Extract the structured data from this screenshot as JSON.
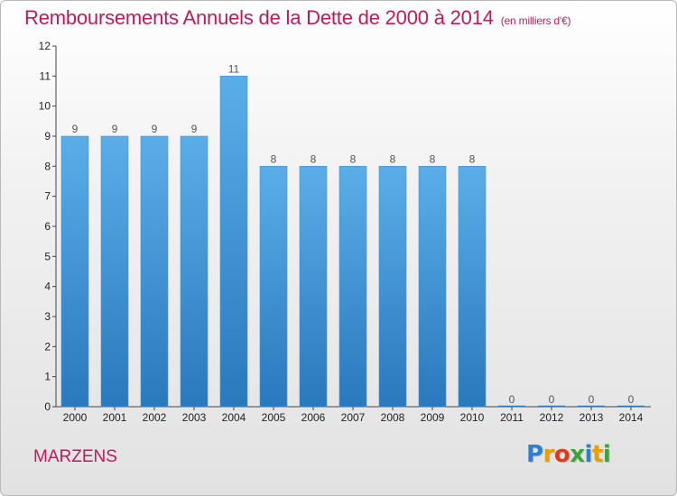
{
  "header": {
    "title": "Remboursements Annuels de la Dette de 2000 à 2014",
    "unit": "(en milliers d'€)"
  },
  "footer": {
    "town": "MARZENS",
    "logo_letters": [
      "P",
      "r",
      "o",
      "x",
      "i",
      "t",
      "i"
    ],
    "logo_colors": [
      "#2e7fd0",
      "#e6a100",
      "#e03a1e",
      "#3aa53a",
      "#2e7fd0",
      "#e6a100",
      "#3aa53a"
    ]
  },
  "colors": {
    "title": "#c2185b",
    "bar_top": "#5aaee8",
    "bar_bottom": "#2a78bd"
  },
  "chart_data": {
    "type": "bar",
    "categories": [
      "2000",
      "2001",
      "2002",
      "2003",
      "2004",
      "2005",
      "2006",
      "2007",
      "2008",
      "2009",
      "2010",
      "2011",
      "2012",
      "2013",
      "2014"
    ],
    "values": [
      9,
      9,
      9,
      9,
      11,
      8,
      8,
      8,
      8,
      8,
      8,
      0,
      0,
      0,
      0
    ],
    "data_labels": [
      "9",
      "9",
      "9",
      "9",
      "11",
      "8",
      "8",
      "8",
      "8",
      "8",
      "8",
      "0",
      "0",
      "0",
      "0"
    ],
    "y_ticks": [
      "0",
      "1",
      "2",
      "3",
      "4",
      "5",
      "6",
      "7",
      "8",
      "9",
      "10",
      "11",
      "12"
    ],
    "ylim": [
      0,
      12
    ],
    "grid": false,
    "title": "Remboursements Annuels de la Dette de 2000 à 2014",
    "xlabel": "",
    "ylabel": ""
  }
}
